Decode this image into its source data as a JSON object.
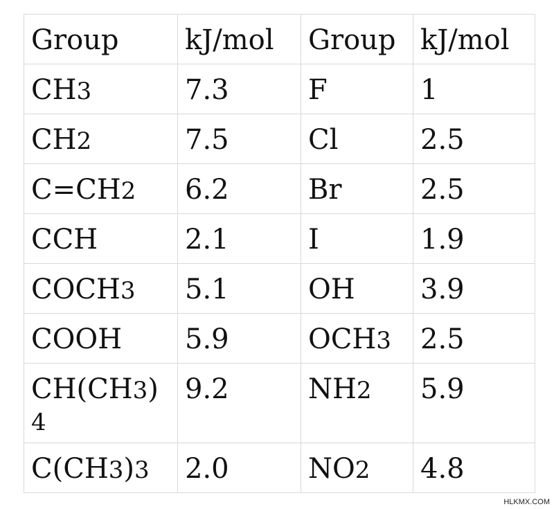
{
  "table": {
    "header": {
      "group1": "Group",
      "kj1": "kJ/mol",
      "group2": "Group",
      "kj2": "kJ/mol"
    },
    "rows": [
      {
        "group1_main": "CH",
        "group1_sub": "3",
        "group1_tail": "",
        "kj1": "7.3",
        "group2_main": "F",
        "group2_sub": "",
        "kj2": "1"
      },
      {
        "group1_main": "CH",
        "group1_sub": "2",
        "group1_tail": "",
        "kj1": "7.5",
        "group2_main": "Cl",
        "group2_sub": "",
        "kj2": "2.5"
      },
      {
        "group1_main": "C=CH",
        "group1_sub": "2",
        "group1_tail": "",
        "kj1": "6.2",
        "group2_main": "Br",
        "group2_sub": "",
        "kj2": "2.5"
      },
      {
        "group1_main": "CCH",
        "group1_sub": "",
        "group1_tail": "",
        "kj1": "2.1",
        "group2_main": "I",
        "group2_sub": "",
        "kj2": "1.9"
      },
      {
        "group1_main": "COCH",
        "group1_sub": "3",
        "group1_tail": "",
        "kj1": "5.1",
        "group2_main": "OH",
        "group2_sub": "",
        "kj2": "3.9"
      },
      {
        "group1_main": "COOH",
        "group1_sub": "",
        "group1_tail": "",
        "kj1": "5.9",
        "group2_main": "OCH",
        "group2_sub": "3",
        "kj2": "2.5"
      },
      {
        "group1_main": "CH(CH",
        "group1_sub": "3",
        "group1_tail": ")",
        "group1_extra": "4",
        "kj1": "9.2",
        "group2_main": "NH",
        "group2_sub": "2",
        "kj2": "5.9"
      },
      {
        "group1_main": "C(CH",
        "group1_sub": "3",
        "group1_tail": ")",
        "group1_tail_sub": "3",
        "kj1": "2.0",
        "group2_main": "NO",
        "group2_sub": "2",
        "kj2": "4.8"
      }
    ]
  },
  "watermark": "HLKMX.COM"
}
